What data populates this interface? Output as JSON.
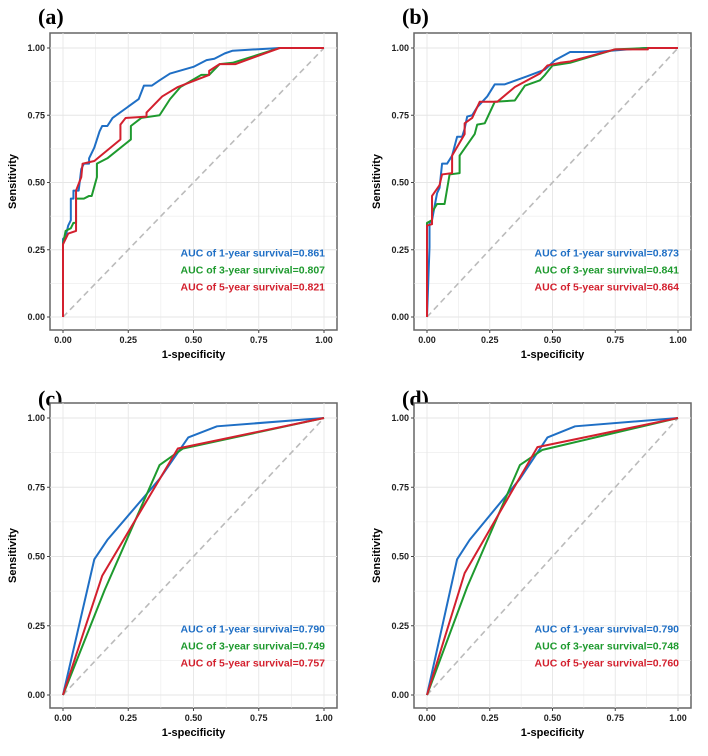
{
  "colors": {
    "1-year": "#1f6fc5",
    "3-year": "#1e9a2e",
    "5-year": "#d3202e",
    "diagonal": "#bbbbbb"
  },
  "chart_data": [
    {
      "type": "line",
      "title": "(a)",
      "xlabel": "1-specificity",
      "ylabel": "Sensitivity",
      "xlim": [
        0,
        1
      ],
      "ylim": [
        0,
        1
      ],
      "grid": true,
      "legend_position": "bottom-right",
      "ticks": [
        "0.00",
        "0.25",
        "0.50",
        "0.75",
        "1.00"
      ],
      "series": [
        {
          "name": "AUC of 1-year survival=0.861",
          "key": "1-year",
          "points": [
            [
              0,
              0
            ],
            [
              0,
              0.29
            ],
            [
              0.01,
              0.3
            ],
            [
              0.02,
              0.34
            ],
            [
              0.03,
              0.36
            ],
            [
              0.03,
              0.44
            ],
            [
              0.04,
              0.44
            ],
            [
              0.04,
              0.47
            ],
            [
              0.06,
              0.47
            ],
            [
              0.07,
              0.55
            ],
            [
              0.08,
              0.57
            ],
            [
              0.1,
              0.57
            ],
            [
              0.1,
              0.59
            ],
            [
              0.12,
              0.63
            ],
            [
              0.14,
              0.69
            ],
            [
              0.15,
              0.71
            ],
            [
              0.17,
              0.71
            ],
            [
              0.19,
              0.74
            ],
            [
              0.29,
              0.81
            ],
            [
              0.31,
              0.86
            ],
            [
              0.34,
              0.86
            ],
            [
              0.37,
              0.88
            ],
            [
              0.41,
              0.905
            ],
            [
              0.5,
              0.93
            ],
            [
              0.55,
              0.955
            ],
            [
              0.58,
              0.96
            ],
            [
              0.62,
              0.98
            ],
            [
              0.65,
              0.99
            ],
            [
              0.83,
              1
            ],
            [
              1,
              1
            ]
          ]
        },
        {
          "name": "AUC of 3-year survival=0.807",
          "key": "3-year",
          "points": [
            [
              0,
              0
            ],
            [
              0,
              0.27
            ],
            [
              0.01,
              0.32
            ],
            [
              0.03,
              0.33
            ],
            [
              0.04,
              0.35
            ],
            [
              0.05,
              0.35
            ],
            [
              0.05,
              0.44
            ],
            [
              0.08,
              0.44
            ],
            [
              0.1,
              0.45
            ],
            [
              0.11,
              0.45
            ],
            [
              0.13,
              0.52
            ],
            [
              0.13,
              0.57
            ],
            [
              0.17,
              0.59
            ],
            [
              0.26,
              0.66
            ],
            [
              0.26,
              0.71
            ],
            [
              0.3,
              0.74
            ],
            [
              0.37,
              0.75
            ],
            [
              0.41,
              0.81
            ],
            [
              0.45,
              0.855
            ],
            [
              0.53,
              0.9
            ],
            [
              0.56,
              0.9
            ],
            [
              0.6,
              0.94
            ],
            [
              0.65,
              0.945
            ],
            [
              0.83,
              1
            ],
            [
              1,
              1
            ]
          ]
        },
        {
          "name": "AUC of 5-year survival=0.821",
          "key": "5-year",
          "points": [
            [
              0,
              0
            ],
            [
              0,
              0.27
            ],
            [
              0.02,
              0.31
            ],
            [
              0.05,
              0.32
            ],
            [
              0.05,
              0.47
            ],
            [
              0.07,
              0.52
            ],
            [
              0.075,
              0.57
            ],
            [
              0.12,
              0.58
            ],
            [
              0.22,
              0.66
            ],
            [
              0.22,
              0.715
            ],
            [
              0.24,
              0.74
            ],
            [
              0.32,
              0.745
            ],
            [
              0.32,
              0.76
            ],
            [
              0.38,
              0.82
            ],
            [
              0.44,
              0.855
            ],
            [
              0.52,
              0.885
            ],
            [
              0.56,
              0.9
            ],
            [
              0.56,
              0.915
            ],
            [
              0.6,
              0.94
            ],
            [
              0.66,
              0.94
            ],
            [
              0.83,
              1
            ],
            [
              1,
              1
            ]
          ]
        }
      ]
    },
    {
      "type": "line",
      "title": "(b)",
      "xlabel": "1-specificity",
      "ylabel": "Sensitivity",
      "xlim": [
        0,
        1
      ],
      "ylim": [
        0,
        1
      ],
      "grid": true,
      "legend_position": "bottom-right",
      "ticks": [
        "0.00",
        "0.25",
        "0.50",
        "0.75",
        "1.00"
      ],
      "series": [
        {
          "name": "AUC of 1-year survival=0.873",
          "key": "1-year",
          "points": [
            [
              0,
              0
            ],
            [
              0.01,
              0.26
            ],
            [
              0.01,
              0.35
            ],
            [
              0.02,
              0.36
            ],
            [
              0.03,
              0.41
            ],
            [
              0.04,
              0.46
            ],
            [
              0.05,
              0.48
            ],
            [
              0.06,
              0.57
            ],
            [
              0.08,
              0.57
            ],
            [
              0.1,
              0.6
            ],
            [
              0.12,
              0.67
            ],
            [
              0.14,
              0.67
            ],
            [
              0.15,
              0.7
            ],
            [
              0.16,
              0.745
            ],
            [
              0.18,
              0.75
            ],
            [
              0.2,
              0.78
            ],
            [
              0.24,
              0.82
            ],
            [
              0.27,
              0.865
            ],
            [
              0.31,
              0.865
            ],
            [
              0.4,
              0.895
            ],
            [
              0.47,
              0.92
            ],
            [
              0.51,
              0.955
            ],
            [
              0.55,
              0.975
            ],
            [
              0.57,
              0.985
            ],
            [
              0.67,
              0.985
            ],
            [
              0.87,
              1
            ],
            [
              1,
              1
            ]
          ]
        },
        {
          "name": "AUC of 3-year survival=0.841",
          "key": "3-year",
          "points": [
            [
              0,
              0
            ],
            [
              0,
              0.35
            ],
            [
              0.02,
              0.36
            ],
            [
              0.02,
              0.39
            ],
            [
              0.04,
              0.42
            ],
            [
              0.07,
              0.42
            ],
            [
              0.09,
              0.53
            ],
            [
              0.13,
              0.535
            ],
            [
              0.13,
              0.6
            ],
            [
              0.19,
              0.68
            ],
            [
              0.2,
              0.715
            ],
            [
              0.23,
              0.72
            ],
            [
              0.27,
              0.8
            ],
            [
              0.35,
              0.805
            ],
            [
              0.39,
              0.86
            ],
            [
              0.45,
              0.88
            ],
            [
              0.47,
              0.9
            ],
            [
              0.5,
              0.935
            ],
            [
              0.57,
              0.945
            ],
            [
              0.75,
              0.995
            ],
            [
              0.88,
              1
            ],
            [
              1,
              1
            ]
          ]
        },
        {
          "name": "AUC of 5-year survival=0.864",
          "key": "5-year",
          "points": [
            [
              0,
              0
            ],
            [
              0,
              0.34
            ],
            [
              0.02,
              0.345
            ],
            [
              0.02,
              0.45
            ],
            [
              0.05,
              0.49
            ],
            [
              0.06,
              0.53
            ],
            [
              0.1,
              0.535
            ],
            [
              0.1,
              0.6
            ],
            [
              0.15,
              0.68
            ],
            [
              0.15,
              0.72
            ],
            [
              0.18,
              0.74
            ],
            [
              0.21,
              0.8
            ],
            [
              0.28,
              0.8
            ],
            [
              0.35,
              0.855
            ],
            [
              0.4,
              0.88
            ],
            [
              0.45,
              0.905
            ],
            [
              0.48,
              0.935
            ],
            [
              0.53,
              0.945
            ],
            [
              0.57,
              0.95
            ],
            [
              0.75,
              0.995
            ],
            [
              0.88,
              0.995
            ],
            [
              0.88,
              1
            ],
            [
              1,
              1
            ]
          ]
        }
      ]
    },
    {
      "type": "line",
      "title": "(c)",
      "xlabel": "1-specificity",
      "ylabel": "Sensitivity",
      "xlim": [
        0,
        1
      ],
      "ylim": [
        0,
        1
      ],
      "grid": true,
      "legend_position": "bottom-right",
      "ticks": [
        "0.00",
        "0.25",
        "0.50",
        "0.75",
        "1.00"
      ],
      "series": [
        {
          "name": "AUC of 1-year survival=0.790",
          "key": "1-year",
          "points": [
            [
              0,
              0
            ],
            [
              0.12,
              0.49
            ],
            [
              0.17,
              0.56
            ],
            [
              0.37,
              0.78
            ],
            [
              0.48,
              0.93
            ],
            [
              0.59,
              0.97
            ],
            [
              1,
              1
            ]
          ]
        },
        {
          "name": "AUC of 3-year survival=0.749",
          "key": "3-year",
          "points": [
            [
              0,
              0
            ],
            [
              0.16,
              0.38
            ],
            [
              0.37,
              0.83
            ],
            [
              0.46,
              0.89
            ],
            [
              1,
              1
            ]
          ]
        },
        {
          "name": "AUC of 5-year survival=0.757",
          "key": "5-year",
          "points": [
            [
              0,
              0
            ],
            [
              0.15,
              0.43
            ],
            [
              0.44,
              0.89
            ],
            [
              1,
              1
            ]
          ]
        }
      ]
    },
    {
      "type": "line",
      "title": "(d)",
      "xlabel": "1-specificity",
      "ylabel": "Sensitivity",
      "xlim": [
        0,
        1
      ],
      "ylim": [
        0,
        1
      ],
      "grid": true,
      "legend_position": "bottom-right",
      "ticks": [
        "0.00",
        "0.25",
        "0.50",
        "0.75",
        "1.00"
      ],
      "series": [
        {
          "name": "AUC of 1-year survival=0.790",
          "key": "1-year",
          "points": [
            [
              0,
              0
            ],
            [
              0.12,
              0.49
            ],
            [
              0.17,
              0.56
            ],
            [
              0.37,
              0.78
            ],
            [
              0.48,
              0.93
            ],
            [
              0.59,
              0.97
            ],
            [
              1,
              1
            ]
          ]
        },
        {
          "name": "AUC of 3-year survival=0.748",
          "key": "3-year",
          "points": [
            [
              0,
              0
            ],
            [
              0.16,
              0.39
            ],
            [
              0.37,
              0.83
            ],
            [
              0.46,
              0.885
            ],
            [
              1,
              1
            ]
          ]
        },
        {
          "name": "AUC of 5-year survival=0.760",
          "key": "5-year",
          "points": [
            [
              0,
              0
            ],
            [
              0.15,
              0.44
            ],
            [
              0.44,
              0.895
            ],
            [
              1,
              1
            ]
          ]
        }
      ]
    }
  ]
}
